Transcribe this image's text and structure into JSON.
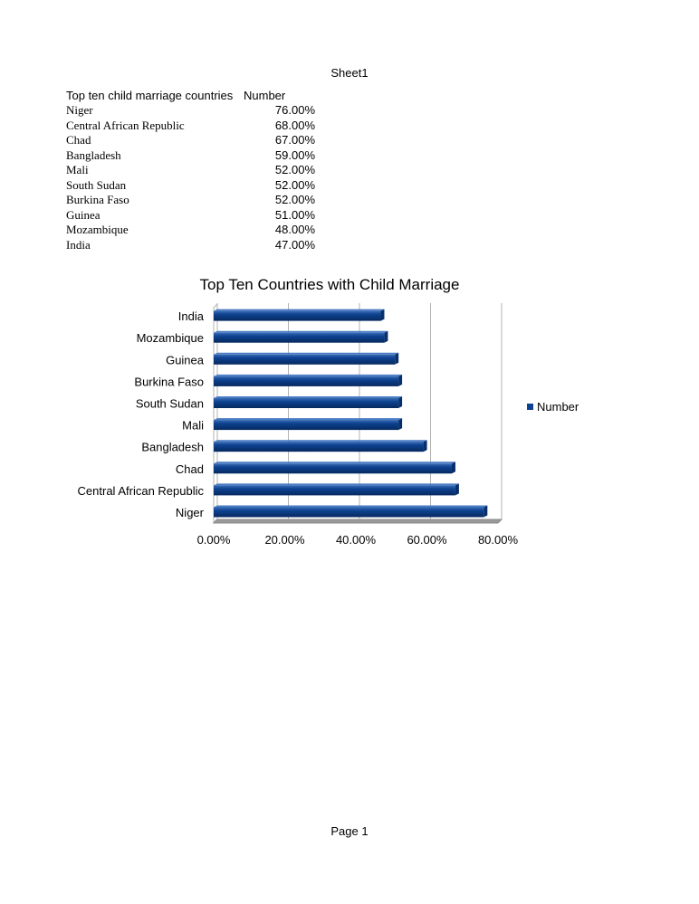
{
  "sheet": {
    "title": "Sheet1",
    "footer": "Page 1"
  },
  "table": {
    "headers": [
      "Top ten child marriage countries",
      "Number"
    ],
    "rows": [
      [
        "Niger",
        "76.00%"
      ],
      [
        "Central African Republic",
        "68.00%"
      ],
      [
        "Chad",
        "67.00%"
      ],
      [
        "Bangladesh",
        "59.00%"
      ],
      [
        "Mali",
        "52.00%"
      ],
      [
        "South Sudan",
        "52.00%"
      ],
      [
        "Burkina Faso",
        "52.00%"
      ],
      [
        "Guinea",
        "51.00%"
      ],
      [
        "Mozambique",
        "48.00%"
      ],
      [
        "India",
        "47.00%"
      ]
    ]
  },
  "chart_data": {
    "type": "bar",
    "orientation": "horizontal",
    "title": "Top Ten Countries with Child Marriage",
    "categories": [
      "Niger",
      "Central African Republic",
      "Chad",
      "Bangladesh",
      "Mali",
      "South Sudan",
      "Burkina Faso",
      "Guinea",
      "Mozambique",
      "India"
    ],
    "series": [
      {
        "name": "Number",
        "values": [
          76,
          68,
          67,
          59,
          52,
          52,
          52,
          51,
          48,
          47
        ],
        "color": "#0d4290"
      }
    ],
    "xlim": [
      0,
      80
    ],
    "xticks": [
      "0.00%",
      "20.00%",
      "40.00%",
      "60.00%",
      "80.00%"
    ],
    "xtick_values": [
      0,
      20,
      40,
      60,
      80
    ],
    "xlabel": "",
    "ylabel": "",
    "grid": true,
    "legend": "right"
  }
}
